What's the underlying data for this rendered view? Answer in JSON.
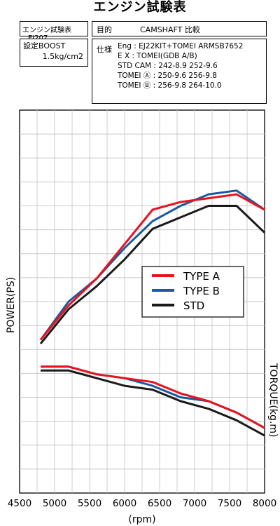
{
  "title": "エンジン試験表",
  "test_number": {
    "label": "エンジン試験表",
    "value": "EJ207"
  },
  "purpose": {
    "label": "目的",
    "value": "CAMSHAFT 比較"
  },
  "boost": {
    "label": "設定BOOST",
    "value": "1.5kg/cm2"
  },
  "spec": {
    "label": "仕様",
    "lines": [
      "Eng : EJ22KIT+TOMEI ARMSB7652",
      "E X : TOMEI(GDB A/B)",
      "STD CAM : 242-8.9 252-9.6",
      "TOMEI Ⓐ : 250-9.6 256-9.8",
      "TOMEI Ⓑ : 256-9.8 264-10.0"
    ]
  },
  "chart_data": {
    "type": "line",
    "xlabel": "(rpm)",
    "ylabel_left": "POWER(PS)",
    "ylabel_right": "TORQUE(kg.m)",
    "xlim": [
      4500,
      8000
    ],
    "x_ticks": [
      4500,
      5000,
      5500,
      6000,
      6500,
      7000,
      7500,
      8000
    ],
    "grid": true,
    "legend_position": "center-right",
    "colors": {
      "type_a": "#e8131f",
      "type_b": "#1a5aa0",
      "std": "#1a1a1a"
    },
    "series": [
      {
        "name": "TYPE A",
        "key": "type_a",
        "power": {
          "x": [
            4800,
            5200,
            5600,
            6000,
            6400,
            6800,
            7200,
            7600,
            8000
          ],
          "norm": [
            0.4,
            0.49,
            0.56,
            0.65,
            0.74,
            0.76,
            0.77,
            0.78,
            0.74
          ]
        },
        "torque": {
          "x": [
            4800,
            5200,
            5600,
            6000,
            6400,
            6800,
            7200,
            7600,
            8000
          ],
          "norm": [
            0.33,
            0.33,
            0.31,
            0.3,
            0.29,
            0.26,
            0.24,
            0.21,
            0.17
          ]
        }
      },
      {
        "name": "TYPE B",
        "key": "type_b",
        "power": {
          "x": [
            4800,
            5200,
            5600,
            6000,
            6400,
            6800,
            7200,
            7600,
            8000
          ],
          "norm": [
            0.4,
            0.5,
            0.56,
            0.64,
            0.71,
            0.75,
            0.78,
            0.79,
            0.74
          ]
        },
        "torque": {
          "x": [
            4800,
            5200,
            5600,
            6000,
            6400,
            6800,
            7200,
            7600,
            8000
          ],
          "norm": [
            0.33,
            0.33,
            0.31,
            0.3,
            0.28,
            0.25,
            0.24,
            0.21,
            0.17
          ]
        }
      },
      {
        "name": "STD",
        "key": "std",
        "power": {
          "x": [
            4800,
            5200,
            5600,
            6000,
            6400,
            6800,
            7200,
            7600,
            8000
          ],
          "norm": [
            0.39,
            0.48,
            0.54,
            0.61,
            0.69,
            0.72,
            0.75,
            0.75,
            0.68
          ]
        },
        "torque": {
          "x": [
            4800,
            5200,
            5600,
            6000,
            6400,
            6800,
            7200,
            7600,
            8000
          ],
          "norm": [
            0.32,
            0.32,
            0.3,
            0.28,
            0.27,
            0.24,
            0.22,
            0.19,
            0.15
          ]
        }
      }
    ]
  }
}
